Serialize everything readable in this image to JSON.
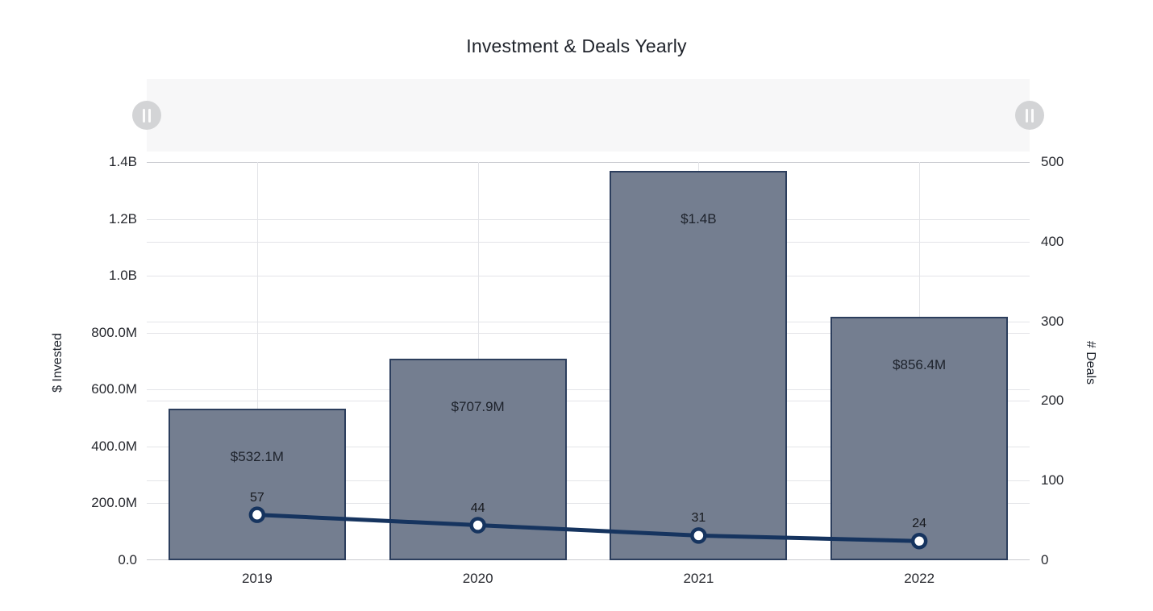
{
  "chart_data": {
    "type": "bar+line",
    "title": "Investment & Deals Yearly",
    "categories": [
      "2019",
      "2020",
      "2021",
      "2022"
    ],
    "series": [
      {
        "name": "$ Invested",
        "type": "bar",
        "axis": "left",
        "values": [
          532100000,
          707900000,
          1369000000,
          856400000
        ],
        "labels": [
          "$532.1M",
          "$707.9M",
          "$1.4B",
          "$856.4M"
        ]
      },
      {
        "name": "# Deals",
        "type": "line",
        "axis": "right",
        "values": [
          57,
          44,
          31,
          24
        ],
        "labels": [
          "57",
          "44",
          "31",
          "24"
        ]
      }
    ],
    "left_axis": {
      "title": "$ Invested",
      "min": 0,
      "max": 1400000000,
      "ticks": [
        "1.4B",
        "1.2B",
        "1.0B",
        "800.0M",
        "600.0M",
        "400.0M",
        "200.0M",
        "0.0"
      ],
      "tick_values": [
        1400000000,
        1200000000,
        1000000000,
        800000000,
        600000000,
        400000000,
        200000000,
        0
      ]
    },
    "right_axis": {
      "title": "# Deals",
      "min": 0,
      "max": 500,
      "ticks": [
        "500",
        "400",
        "300",
        "200",
        "100",
        "0"
      ],
      "tick_values": [
        500,
        400,
        300,
        200,
        100,
        0
      ]
    },
    "grid": true,
    "legend": "none",
    "colors": {
      "bar_fill": "#747e90",
      "bar_border": "#2c3e5d",
      "line": "#16345f",
      "marker_fill": "#ffffff",
      "grid": "#e3e4e8",
      "grid_edge": "#c9cacf",
      "zoom_track": "#f7f7f8",
      "zoom_handle": "#d3d4d6"
    }
  },
  "ui": {
    "data_zoom": {
      "handle_icon": "pause-bars"
    }
  }
}
